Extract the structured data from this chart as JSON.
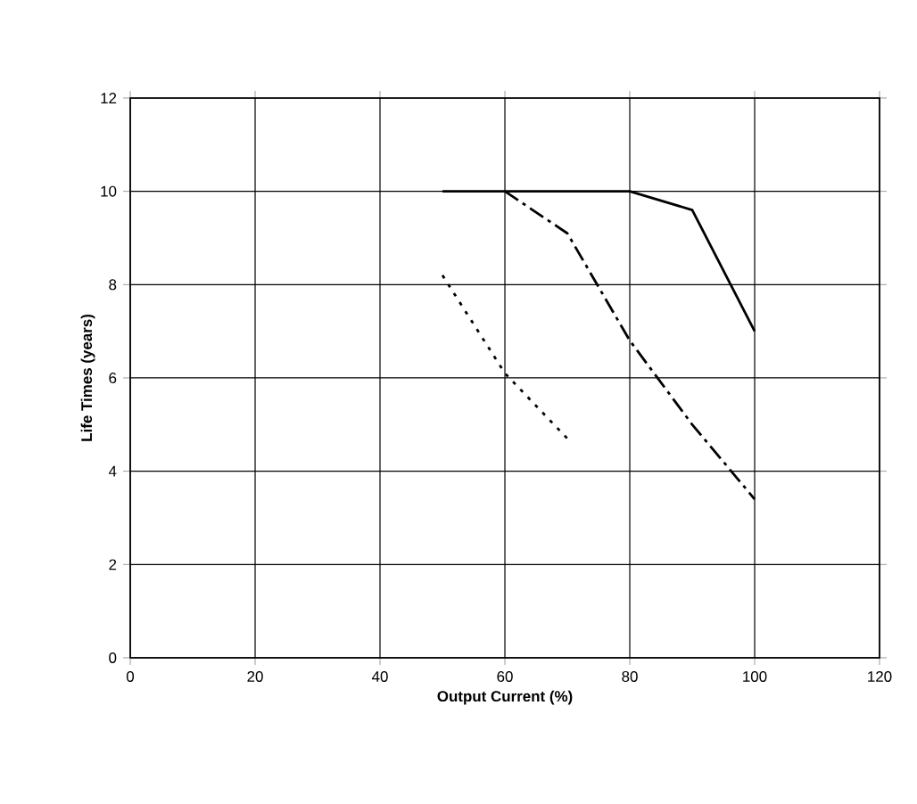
{
  "chart_data": {
    "type": "line",
    "xlabel": "Output Current (%)",
    "ylabel": "Life Times (years)",
    "xlim": [
      0,
      120
    ],
    "xticks": [
      0,
      20,
      40,
      60,
      80,
      100,
      120
    ],
    "ylim": [
      0,
      12
    ],
    "yticks": [
      0,
      2,
      4,
      6,
      8,
      10,
      12
    ],
    "grid": true,
    "marker": "none",
    "series": [
      {
        "color": "#000000",
        "line_style": "solid",
        "x": [
          50,
          60,
          70,
          80,
          90,
          100
        ],
        "values": [
          10,
          10,
          10,
          10,
          9.6,
          7
        ]
      },
      {
        "color": "#000000",
        "line_style": "dashed",
        "x": [
          60,
          70,
          80,
          90,
          100
        ],
        "values": [
          10,
          9.1,
          6.8,
          5.0,
          3.4
        ]
      },
      {
        "color": "#000000",
        "line_style": "dotted",
        "x": [
          50,
          60,
          70
        ],
        "values": [
          8.2,
          6.1,
          4.7
        ]
      }
    ]
  }
}
